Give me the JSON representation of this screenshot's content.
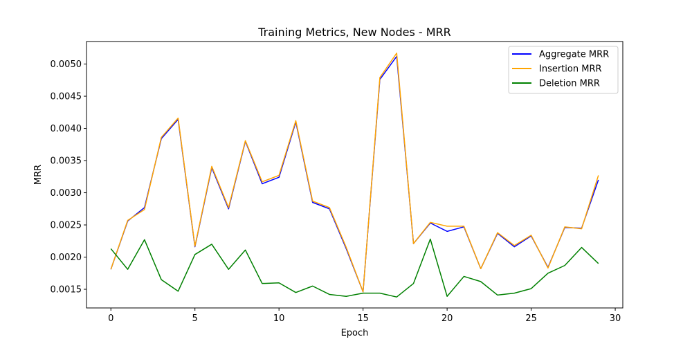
{
  "chart_data": {
    "type": "line",
    "title": "Training Metrics, New Nodes - MRR",
    "xlabel": "Epoch",
    "ylabel": "MRR",
    "xlim": [
      -1.45,
      30.45
    ],
    "ylim": [
      0.00121,
      0.00535
    ],
    "x_ticks": [
      0,
      5,
      10,
      15,
      20,
      25,
      30
    ],
    "x_tick_labels": [
      "0",
      "5",
      "10",
      "15",
      "20",
      "25",
      "30"
    ],
    "y_ticks": [
      0.0015,
      0.002,
      0.0025,
      0.003,
      0.0035,
      0.004,
      0.0045,
      0.005
    ],
    "y_tick_labels": [
      "0.0015",
      "0.0020",
      "0.0025",
      "0.0030",
      "0.0035",
      "0.0040",
      "0.0045",
      "0.0050"
    ],
    "grid": false,
    "legend_position": "top-right",
    "x": [
      0,
      1,
      2,
      3,
      4,
      5,
      6,
      7,
      8,
      9,
      10,
      11,
      12,
      13,
      14,
      15,
      16,
      17,
      18,
      19,
      20,
      21,
      22,
      23,
      24,
      25,
      26,
      27,
      28,
      29
    ],
    "series": [
      {
        "name": "Aggregate MRR",
        "color": "#0000ff",
        "values": [
          0.00181,
          0.00256,
          0.00277,
          0.00384,
          0.00414,
          0.00216,
          0.00339,
          0.00275,
          0.0038,
          0.00314,
          0.00324,
          0.0041,
          0.00285,
          0.00275,
          0.00213,
          0.00146,
          0.00476,
          0.00512,
          0.00221,
          0.00253,
          0.0024,
          0.00247,
          0.00182,
          0.00237,
          0.00216,
          0.00233,
          0.00184,
          0.00246,
          0.00245,
          0.0032
        ]
      },
      {
        "name": "Insertion MRR",
        "color": "#ffa500",
        "values": [
          0.00181,
          0.00257,
          0.00274,
          0.00386,
          0.00416,
          0.00217,
          0.00341,
          0.00277,
          0.00381,
          0.00317,
          0.00327,
          0.00412,
          0.00287,
          0.00277,
          0.00215,
          0.00146,
          0.00479,
          0.00517,
          0.00221,
          0.00254,
          0.00248,
          0.00248,
          0.00182,
          0.00238,
          0.00218,
          0.00234,
          0.00183,
          0.00247,
          0.00244,
          0.00327
        ]
      },
      {
        "name": "Deletion MRR",
        "color": "#008000",
        "values": [
          0.00213,
          0.00181,
          0.00227,
          0.00165,
          0.00147,
          0.00204,
          0.0022,
          0.00181,
          0.00211,
          0.00159,
          0.0016,
          0.00145,
          0.00155,
          0.00142,
          0.00139,
          0.00144,
          0.00144,
          0.00138,
          0.00159,
          0.00228,
          0.00139,
          0.0017,
          0.00162,
          0.00141,
          0.00144,
          0.00151,
          0.00175,
          0.00187,
          0.00215,
          0.0019
        ]
      }
    ]
  }
}
